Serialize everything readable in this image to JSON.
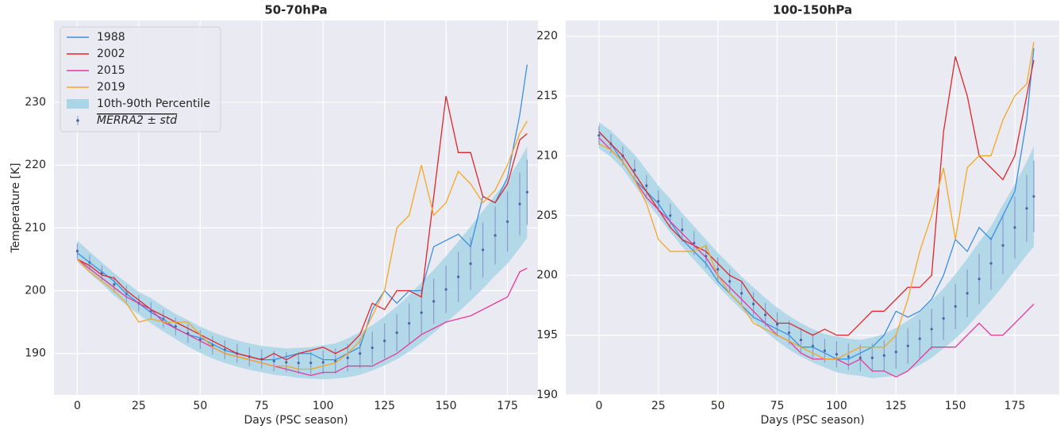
{
  "chart_data": [
    {
      "type": "line",
      "title": "50-70hPa",
      "x_label": "Days (PSC season)",
      "y_label": "Temperature [K]",
      "xlim": [
        -9.5,
        187.4
      ],
      "ylim": [
        183.4,
        243
      ],
      "xticks": [
        0,
        25,
        50,
        75,
        100,
        125,
        150,
        175
      ],
      "yticks": [
        190,
        200,
        210,
        220,
        230
      ],
      "grid": true,
      "legend": "upper left",
      "x": [
        0,
        5,
        10,
        15,
        20,
        25,
        30,
        35,
        40,
        45,
        50,
        55,
        60,
        65,
        70,
        75,
        80,
        85,
        90,
        95,
        100,
        105,
        110,
        115,
        120,
        125,
        130,
        135,
        140,
        145,
        150,
        155,
        160,
        165,
        170,
        175,
        180,
        183
      ],
      "series": [
        {
          "name": "1988",
          "color": "#3a8fe0",
          "values": [
            206,
            204.5,
            203,
            201.5,
            199.5,
            198,
            196.5,
            195.5,
            194,
            193,
            192.5,
            191.5,
            190.5,
            190,
            189.5,
            189,
            189,
            189.5,
            190,
            190,
            189,
            189,
            190,
            191,
            197,
            200,
            198,
            200,
            200,
            207,
            208,
            209,
            207,
            215,
            214,
            218,
            228,
            236
          ]
        },
        {
          "name": "2002",
          "color": "#e0262b",
          "values": [
            205,
            204,
            202.5,
            202,
            200,
            198.5,
            197,
            196,
            195,
            194,
            193,
            192,
            191,
            190,
            189.5,
            189,
            190,
            189,
            190,
            190.5,
            191,
            190,
            191,
            193,
            198,
            197,
            200,
            200,
            199,
            215,
            231,
            222,
            222,
            215,
            214,
            217,
            224,
            225
          ]
        },
        {
          "name": "2015",
          "color": "#e8379a",
          "values": [
            205,
            203.5,
            202,
            200.5,
            199,
            198,
            197,
            195,
            194,
            193,
            192,
            191,
            190,
            189.5,
            189,
            188.5,
            188,
            187.5,
            187,
            186.5,
            187,
            187,
            188,
            188,
            188,
            189,
            190,
            191.5,
            193,
            194,
            195,
            195.5,
            196,
            197,
            198,
            199,
            203,
            203.6
          ]
        },
        {
          "name": "2019",
          "color": "#f5a623",
          "values": [
            205,
            203,
            201.5,
            200,
            198,
            195,
            195.5,
            195,
            195,
            195,
            193,
            191,
            190,
            189.5,
            189,
            188.5,
            188,
            188,
            187.5,
            187.5,
            188,
            188.5,
            190,
            192,
            196,
            200,
            210,
            212,
            220,
            212,
            214,
            219,
            217,
            214,
            216,
            220,
            225,
            227
          ]
        }
      ],
      "band": {
        "name": "10th-90th Percentile",
        "color": "#a9d5e6",
        "low": [
          204.6,
          202.8,
          201.1,
          199.2,
          197.7,
          196.2,
          194.8,
          193.5,
          192.3,
          191.1,
          190.1,
          189.2,
          188.5,
          187.9,
          187.4,
          187,
          186.6,
          186.4,
          186.1,
          186,
          185.9,
          186,
          186.2,
          186.6,
          187.3,
          188.1,
          189.1,
          190.3,
          191.7,
          193.3,
          194.9,
          196.6,
          198.4,
          200.3,
          202.4,
          204.3,
          206.8,
          208.4
        ],
        "high": [
          208,
          206.2,
          204.5,
          202.8,
          201.3,
          199.8,
          198.8,
          197.5,
          196.3,
          195.3,
          194.3,
          193.4,
          192.7,
          192.1,
          191.6,
          191.2,
          191,
          190.8,
          190.9,
          191,
          191.3,
          191.6,
          192.4,
          193.4,
          194.5,
          195.9,
          197.5,
          199.3,
          201.3,
          203.3,
          205.5,
          207.8,
          210.2,
          212.7,
          215.2,
          217.7,
          220.8,
          223
        ]
      },
      "mean": {
        "name": "MERRA2 ± std",
        "color": "#4a64a8",
        "values": [
          206.3,
          204.5,
          202.8,
          201,
          199.5,
          198,
          196.8,
          195.5,
          194.3,
          193.2,
          192.2,
          191.3,
          190.6,
          190,
          189.5,
          189.1,
          188.8,
          188.6,
          188.5,
          188.5,
          188.6,
          188.8,
          189.3,
          190,
          190.9,
          192,
          193.3,
          194.8,
          196.5,
          198.3,
          200.2,
          202.2,
          204.3,
          206.5,
          208.8,
          211,
          213.8,
          215.7
        ],
        "std": [
          1.2,
          1.2,
          1.2,
          1.3,
          1.3,
          1.3,
          1.4,
          1.4,
          1.4,
          1.5,
          1.5,
          1.5,
          1.5,
          1.5,
          1.5,
          1.5,
          1.6,
          1.6,
          1.7,
          1.8,
          1.9,
          2,
          2.2,
          2.4,
          2.6,
          2.8,
          3,
          3.2,
          3.4,
          3.6,
          3.8,
          4,
          4.2,
          4.4,
          4.6,
          4.8,
          5,
          5.2
        ]
      }
    },
    {
      "type": "line",
      "title": "100-150hPa",
      "x_label": "Days (PSC season)",
      "xlim": [
        -14,
        193.7
      ],
      "ylim": [
        190,
        221.3
      ],
      "xticks": [
        0,
        25,
        50,
        75,
        100,
        125,
        150,
        175
      ],
      "yticks": [
        190,
        195,
        200,
        205,
        210,
        215,
        220
      ],
      "grid": true,
      "x": [
        0,
        5,
        10,
        15,
        20,
        25,
        30,
        35,
        40,
        45,
        50,
        55,
        60,
        65,
        70,
        75,
        80,
        85,
        90,
        95,
        100,
        105,
        110,
        115,
        120,
        125,
        130,
        135,
        140,
        145,
        150,
        155,
        160,
        165,
        170,
        175,
        180,
        183
      ],
      "series": [
        {
          "color": "#3a8fe0",
          "values": [
            212,
            211,
            209.5,
            208,
            207,
            206,
            204.5,
            203,
            202,
            201,
            199.5,
            198.5,
            197.5,
            196.5,
            196,
            195.5,
            195,
            194,
            194,
            193.5,
            193,
            193,
            193.5,
            194,
            195,
            197,
            196.5,
            197,
            198,
            200,
            203,
            202,
            204,
            203,
            205,
            207,
            213,
            219
          ]
        },
        {
          "color": "#e0262b",
          "values": [
            212,
            211,
            210,
            208.5,
            207,
            205.5,
            204,
            203,
            202.5,
            202,
            201,
            200,
            199.5,
            198,
            197,
            196,
            196,
            195.5,
            195,
            195.5,
            195,
            195,
            196,
            197,
            197,
            198,
            199,
            199,
            200,
            212,
            218.3,
            215,
            210,
            209,
            208,
            210,
            215,
            218
          ]
        },
        {
          "color": "#e8379a",
          "values": [
            211.5,
            210.5,
            209.5,
            208,
            206.5,
            205.5,
            204.5,
            203.5,
            202.5,
            201.5,
            200,
            199,
            198,
            197,
            196,
            195,
            194.5,
            193.5,
            193,
            193,
            193,
            192.5,
            193,
            192,
            192,
            191.5,
            192,
            193,
            194,
            194,
            194,
            195,
            196,
            195,
            195,
            196,
            197,
            197.6
          ]
        },
        {
          "color": "#f5a623",
          "values": [
            211,
            210.5,
            209.5,
            208,
            206,
            203,
            202,
            202,
            202,
            202.5,
            200,
            198.5,
            197.5,
            196,
            195.5,
            195,
            194.5,
            194,
            193.5,
            193,
            193,
            193.5,
            194,
            194,
            194,
            195,
            198,
            202,
            205,
            209,
            203,
            209,
            210,
            210,
            213,
            215,
            216,
            219.5
          ]
        }
      ],
      "band": {
        "color": "#a9d5e6",
        "low": [
          210.6,
          209.9,
          208.9,
          207.5,
          206.2,
          204.9,
          203.6,
          202.4,
          201.3,
          200.2,
          199.1,
          198.1,
          197.1,
          196.2,
          195.3,
          194.5,
          193.8,
          193.2,
          192.7,
          192.3,
          191.9,
          191.7,
          191.6,
          191.4,
          191.5,
          191.6,
          192,
          192.5,
          193.1,
          193.9,
          194.7,
          195.7,
          196.8,
          197.9,
          199.1,
          200.4,
          201.7,
          202.4
        ],
        "high": [
          212.8,
          212.1,
          211.1,
          210.1,
          208.8,
          207.5,
          206.4,
          205.2,
          204.1,
          203,
          201.9,
          200.9,
          199.9,
          199,
          198.1,
          197.3,
          196.6,
          196,
          195.5,
          195.1,
          194.9,
          194.7,
          194.6,
          194.8,
          195.1,
          195.6,
          196.2,
          196.9,
          197.9,
          198.9,
          200.1,
          201.4,
          202.8,
          204.1,
          205.9,
          207.6,
          209.5,
          210.8
        ]
      },
      "mean": {
        "color": "#4a64a8",
        "values": [
          211.7,
          211,
          210,
          208.8,
          207.5,
          206.2,
          205,
          203.8,
          202.7,
          201.6,
          200.5,
          199.5,
          198.5,
          197.6,
          196.7,
          195.9,
          195.2,
          194.6,
          194.1,
          193.7,
          193.4,
          193.2,
          193.1,
          193.1,
          193.3,
          193.6,
          194.1,
          194.7,
          195.5,
          196.4,
          197.4,
          198.5,
          199.7,
          201,
          202.5,
          204,
          205.6,
          206.6
        ],
        "std": [
          0.8,
          0.8,
          0.8,
          0.9,
          0.9,
          0.9,
          1,
          1,
          1,
          1,
          1,
          1,
          1,
          1,
          1,
          1,
          1,
          1,
          1,
          1,
          1.1,
          1.1,
          1.1,
          1.2,
          1.3,
          1.4,
          1.5,
          1.6,
          1.7,
          1.8,
          1.9,
          2,
          2.1,
          2.2,
          2.4,
          2.6,
          2.8,
          3
        ]
      }
    }
  ]
}
